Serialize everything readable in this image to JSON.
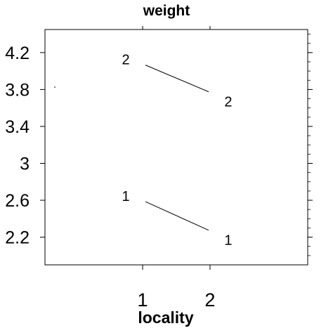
{
  "chart_data": {
    "type": "line",
    "title": "weight",
    "xlabel": "locality",
    "ylabel": "",
    "x": [
      1,
      2
    ],
    "x_ticks": [
      "1",
      "2"
    ],
    "xlim": [
      -0.45,
      3.45
    ],
    "y_ticks": [
      "4.2",
      "3.8",
      "3.4",
      "3",
      "2.6",
      "2.2"
    ],
    "y_tick_values": [
      4.2,
      3.8,
      3.4,
      3.0,
      2.6,
      2.2
    ],
    "ylim": [
      1.9,
      4.45
    ],
    "grid": false,
    "series": [
      {
        "marker": "2",
        "values": [
          4.08,
          3.76
        ]
      },
      {
        "marker": "1",
        "values": [
          2.6,
          2.26
        ]
      }
    ]
  }
}
